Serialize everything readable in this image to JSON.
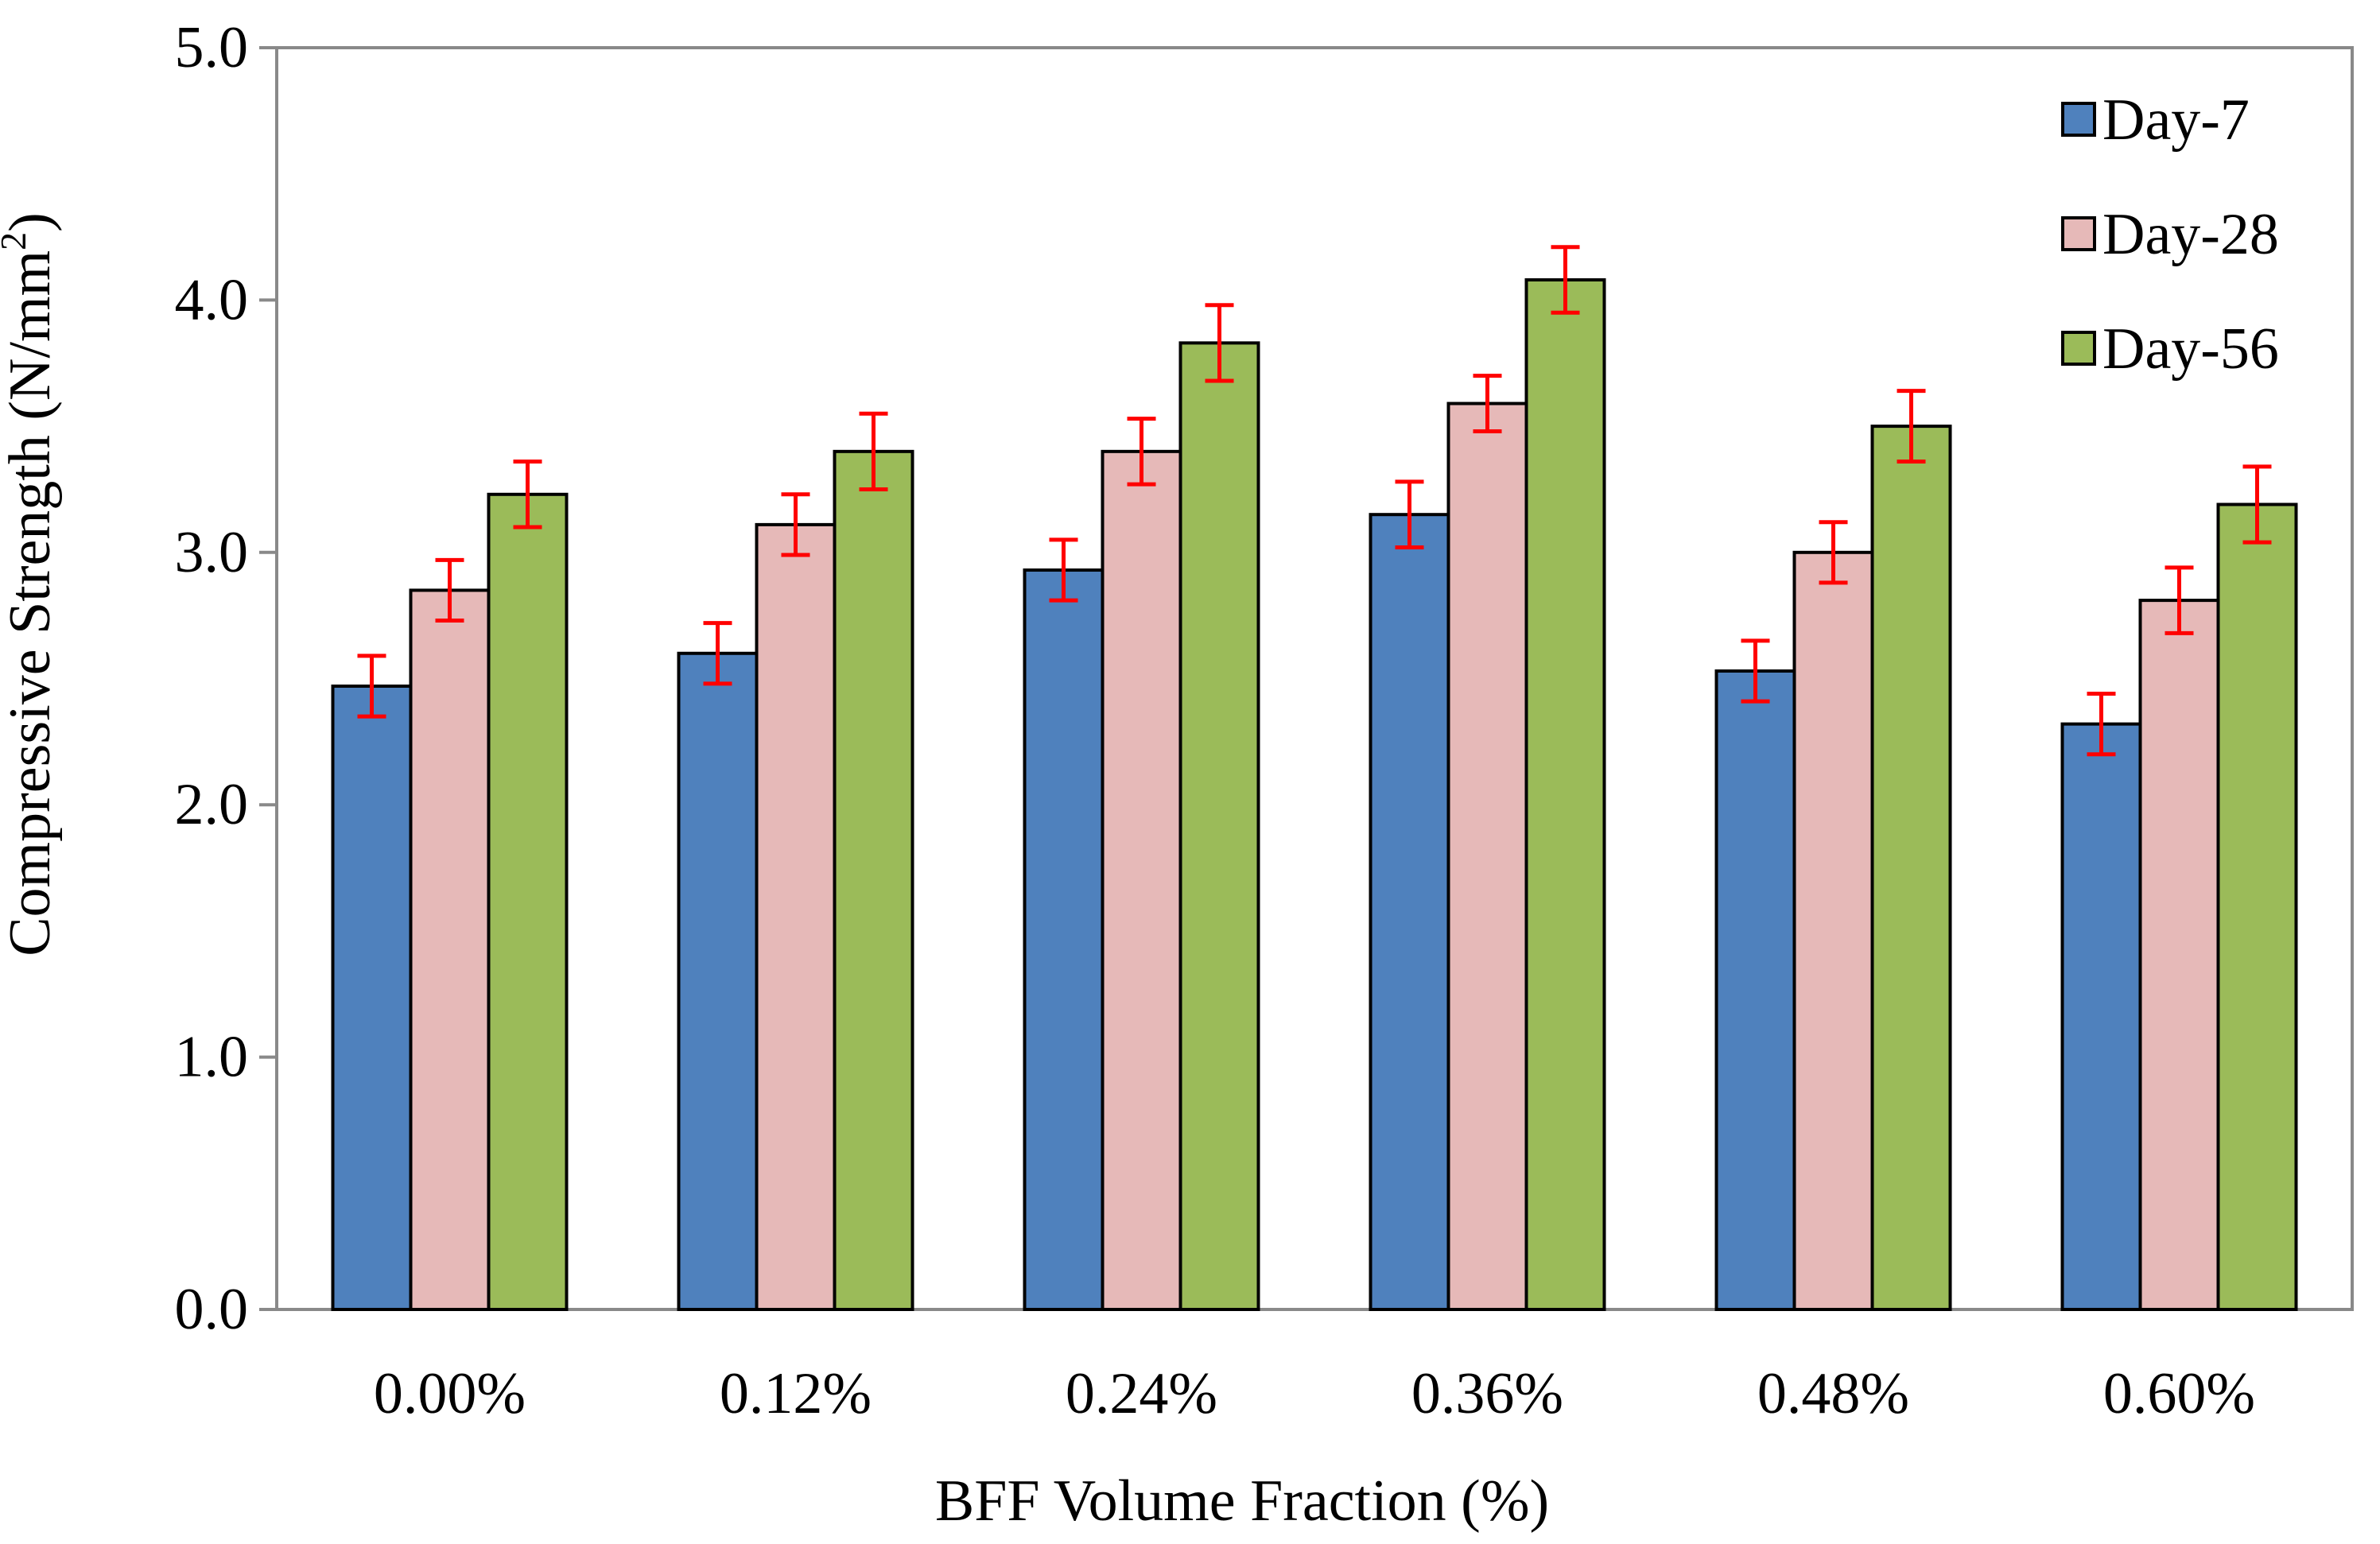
{
  "chart_data": {
    "type": "bar",
    "title": "",
    "xlabel": "BFF Volume Fraction (%)",
    "ylabel": "Compressive Strength (N/mm",
    "ylabel_superscript": "2",
    "ylabel_close": ")",
    "ylim": [
      0,
      5
    ],
    "yticks": [
      "0.0",
      "1.0",
      "2.0",
      "3.0",
      "4.0",
      "5.0"
    ],
    "ytick_values": [
      0,
      1,
      2,
      3,
      4,
      5
    ],
    "categories": [
      "0.00%",
      "0.12%",
      "0.24%",
      "0.36%",
      "0.48%",
      "0.60%"
    ],
    "series": [
      {
        "name": "Day-7",
        "color": "#4F81BD",
        "values": [
          2.47,
          2.6,
          2.93,
          3.15,
          2.53,
          2.32
        ],
        "errors": [
          0.12,
          0.12,
          0.12,
          0.13,
          0.12,
          0.12
        ]
      },
      {
        "name": "Day-28",
        "color": "#E6B9B8",
        "values": [
          2.85,
          3.11,
          3.4,
          3.59,
          3.0,
          2.81
        ],
        "errors": [
          0.12,
          0.12,
          0.13,
          0.11,
          0.12,
          0.13
        ]
      },
      {
        "name": "Day-56",
        "color": "#9BBB59",
        "values": [
          3.23,
          3.4,
          3.83,
          4.08,
          3.5,
          3.19
        ],
        "errors": [
          0.13,
          0.15,
          0.15,
          0.13,
          0.14,
          0.15
        ]
      }
    ],
    "error_bar_color": "#FF0000",
    "grid": false,
    "legend_position": "top-right"
  }
}
